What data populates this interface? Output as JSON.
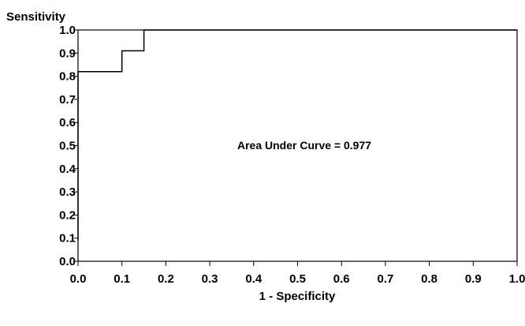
{
  "chart_data": {
    "type": "line",
    "title": "",
    "xlabel": "1 - Specificity",
    "ylabel": "Sensitivity",
    "xlim": [
      0.0,
      1.0
    ],
    "ylim": [
      0.0,
      1.0
    ],
    "grid": false,
    "x_ticks": [
      "0.0",
      "0.1",
      "0.2",
      "0.3",
      "0.4",
      "0.5",
      "0.6",
      "0.7",
      "0.8",
      "0.9",
      "1.0"
    ],
    "y_ticks": [
      "0.0",
      "0.1",
      "0.2",
      "0.3",
      "0.4",
      "0.5",
      "0.6",
      "0.7",
      "0.8",
      "0.9",
      "1.0"
    ],
    "series": [
      {
        "step": "post",
        "x": [
          0.0,
          0.0,
          0.1,
          0.1,
          0.15,
          0.15,
          1.0
        ],
        "y": [
          0.09,
          0.82,
          0.82,
          0.91,
          0.91,
          1.0,
          1.0
        ]
      }
    ],
    "annotations": [
      {
        "text": "Area Under Curve = 0.977",
        "x": 0.5,
        "y": 0.5
      }
    ],
    "colors": {
      "line": "#000000",
      "axis": "#000000",
      "background": "#ffffff"
    }
  }
}
